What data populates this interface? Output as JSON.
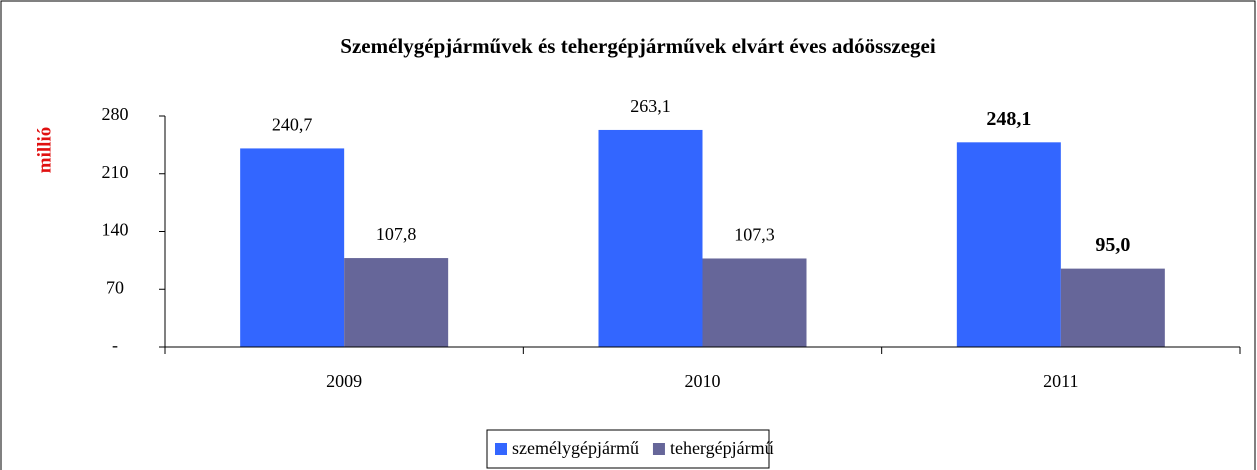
{
  "chart_data": {
    "type": "bar",
    "title": "Személygépjárművek és tehergépjárművek elvárt éves adóösszegei",
    "y_label": "millió",
    "categories": [
      "2009",
      "2010",
      "2011"
    ],
    "series": [
      {
        "name": "személygépjármű",
        "color": "#3366ff",
        "values": [
          240.7,
          263.1,
          248.1
        ],
        "value_labels": [
          "240,7",
          "263,1",
          "248,1"
        ]
      },
      {
        "name": "tehergépjármű",
        "color": "#666699",
        "values": [
          107.8,
          107.3,
          95.0
        ],
        "value_labels": [
          "107,8",
          "107,3",
          "95,0"
        ]
      }
    ],
    "value_label_bold": [
      false,
      false,
      true
    ],
    "ylim": [
      0,
      280
    ],
    "yticks": [
      {
        "value": 0,
        "label": "-"
      },
      70,
      140,
      210,
      280
    ],
    "legend": "bottom"
  }
}
